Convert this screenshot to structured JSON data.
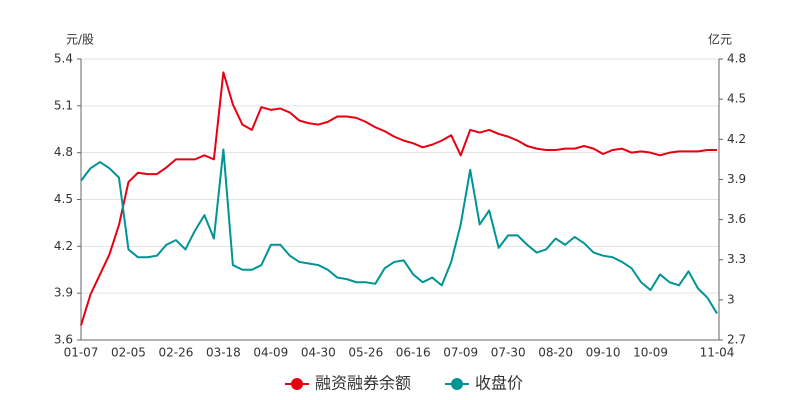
{
  "chart_data": {
    "type": "line",
    "y_label": "元/股",
    "y2_label": "亿元",
    "categories": [
      "01-07",
      null,
      null,
      null,
      null,
      "02-05",
      null,
      null,
      null,
      null,
      "02-26",
      null,
      null,
      null,
      null,
      "03-18",
      null,
      null,
      null,
      null,
      "04-09",
      null,
      null,
      null,
      null,
      "04-30",
      null,
      null,
      null,
      null,
      "05-26",
      null,
      null,
      null,
      null,
      "06-16",
      null,
      null,
      null,
      null,
      "07-09",
      null,
      null,
      null,
      null,
      "07-30",
      null,
      null,
      null,
      null,
      "08-20",
      null,
      null,
      null,
      null,
      "09-10",
      null,
      null,
      null,
      null,
      "10-09",
      null,
      null,
      null,
      null,
      null,
      null,
      "11-04"
    ],
    "series": [
      {
        "name": "融资融券余额",
        "color": "#e60012",
        "axis": "y2",
        "values": [
          2.81,
          3.04,
          3.19,
          3.34,
          3.56,
          3.88,
          3.95,
          3.94,
          3.94,
          3.99,
          4.05,
          4.05,
          4.05,
          4.08,
          4.05,
          4.7,
          4.46,
          4.31,
          4.27,
          4.44,
          4.42,
          4.43,
          4.4,
          4.34,
          4.32,
          4.31,
          4.33,
          4.37,
          4.37,
          4.36,
          4.33,
          4.29,
          4.26,
          4.22,
          4.19,
          4.17,
          4.14,
          4.16,
          4.19,
          4.23,
          4.08,
          4.27,
          4.25,
          4.27,
          4.24,
          4.22,
          4.19,
          4.15,
          4.13,
          4.12,
          4.12,
          4.13,
          4.13,
          4.15,
          4.13,
          4.09,
          4.12,
          4.13,
          4.1,
          4.11,
          4.1,
          4.08,
          4.1,
          4.11,
          4.11,
          4.11,
          4.12,
          4.12
        ]
      },
      {
        "name": "收盘价",
        "color": "#009494",
        "values": [
          4.62,
          4.7,
          4.74,
          4.7,
          4.64,
          4.18,
          4.13,
          4.13,
          4.14,
          4.21,
          4.24,
          4.18,
          4.3,
          4.4,
          4.25,
          4.82,
          4.08,
          4.05,
          4.05,
          4.08,
          4.21,
          4.21,
          4.14,
          4.1,
          4.09,
          4.08,
          4.05,
          4.0,
          3.99,
          3.97,
          3.97,
          3.96,
          4.06,
          4.1,
          4.11,
          4.02,
          3.97,
          4.0,
          3.95,
          4.1,
          4.34,
          4.69,
          4.34,
          4.43,
          4.19,
          4.27,
          4.27,
          4.21,
          4.16,
          4.18,
          4.25,
          4.21,
          4.26,
          4.22,
          4.16,
          4.14,
          4.13,
          4.1,
          4.06,
          3.97,
          3.92,
          4.02,
          3.97,
          3.95,
          4.04,
          3.93,
          3.87,
          3.77
        ]
      }
    ],
    "ylim": [
      3.6,
      5.4
    ],
    "yticks": [
      3.6,
      3.9,
      4.2,
      4.5,
      4.8,
      5.1,
      5.4
    ],
    "y2lim": [
      2.7,
      4.8
    ],
    "y2ticks": [
      2.7,
      3,
      3.3,
      3.6,
      3.9,
      4.2,
      4.5,
      4.8
    ],
    "grid": true,
    "legend": "bottom"
  }
}
